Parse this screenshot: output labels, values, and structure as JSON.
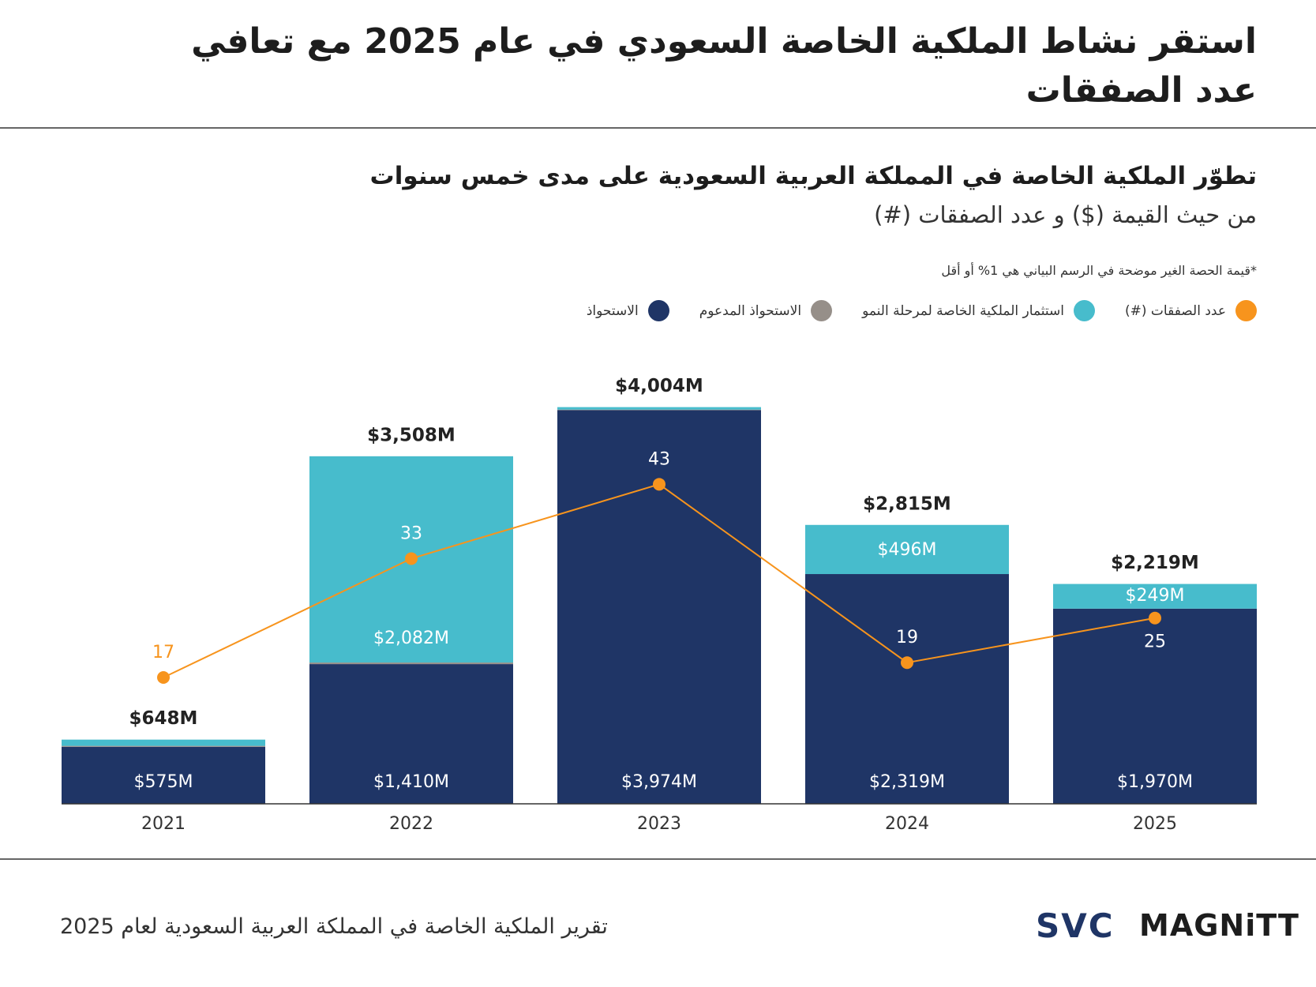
{
  "header": {
    "title": "استقر نشاط الملكية الخاصة السعودي في عام 2025 مع تعافي عدد الصفقات"
  },
  "chart_data": {
    "type": "bar",
    "title": "تطوّر الملكية الخاصة في المملكة العربية السعودية على مدى خمس سنوات",
    "subtitle": "من حيث القيمة ($) و عدد الصفقات (#)",
    "note": "*قيمة الحصة الغير موضحة في الرسم البياني هي 1% أو أقل",
    "categories": [
      "2021",
      "2022",
      "2023",
      "2024",
      "2025"
    ],
    "ylim": [
      0,
      4200
    ],
    "y2lim": [
      0,
      56
    ],
    "series": [
      {
        "name": "عدد الصفقات (#)",
        "type": "line",
        "axis": "y2",
        "color": "#f7941d",
        "values": [
          17,
          33,
          43,
          19,
          25
        ]
      },
      {
        "name": "استثمار الملكية الخاصة لمرحلة النمو",
        "type": "bar",
        "color": "#47bccc",
        "values": [
          63,
          2082,
          25,
          496,
          249
        ],
        "value_labels": [
          null,
          "$2,082M",
          null,
          "$496M",
          "$249M"
        ]
      },
      {
        "name": "الاستحواذ المدعوم",
        "type": "bar",
        "color": "#968f89",
        "values": [
          10,
          16,
          5,
          0,
          0
        ],
        "value_labels": [
          null,
          null,
          null,
          null,
          null
        ]
      },
      {
        "name": "الاستحواذ",
        "type": "bar",
        "color": "#1f3566",
        "values": [
          575,
          1410,
          3974,
          2319,
          1970
        ],
        "value_labels": [
          "$575M",
          "$1,410M",
          "$3,974M",
          "$2,319M",
          "$1,970M"
        ]
      }
    ],
    "totals": {
      "values": [
        648,
        3508,
        4004,
        2815,
        2219
      ],
      "value_labels": [
        "$648M",
        "$3,508M",
        "$4,004M",
        "$2,815M",
        "$2,219M"
      ]
    }
  },
  "footer": {
    "report": "تقرير الملكية الخاصة في المملكة العربية السعودية لعام 2025",
    "logos": [
      "SVC",
      "MAGNiTT"
    ]
  }
}
